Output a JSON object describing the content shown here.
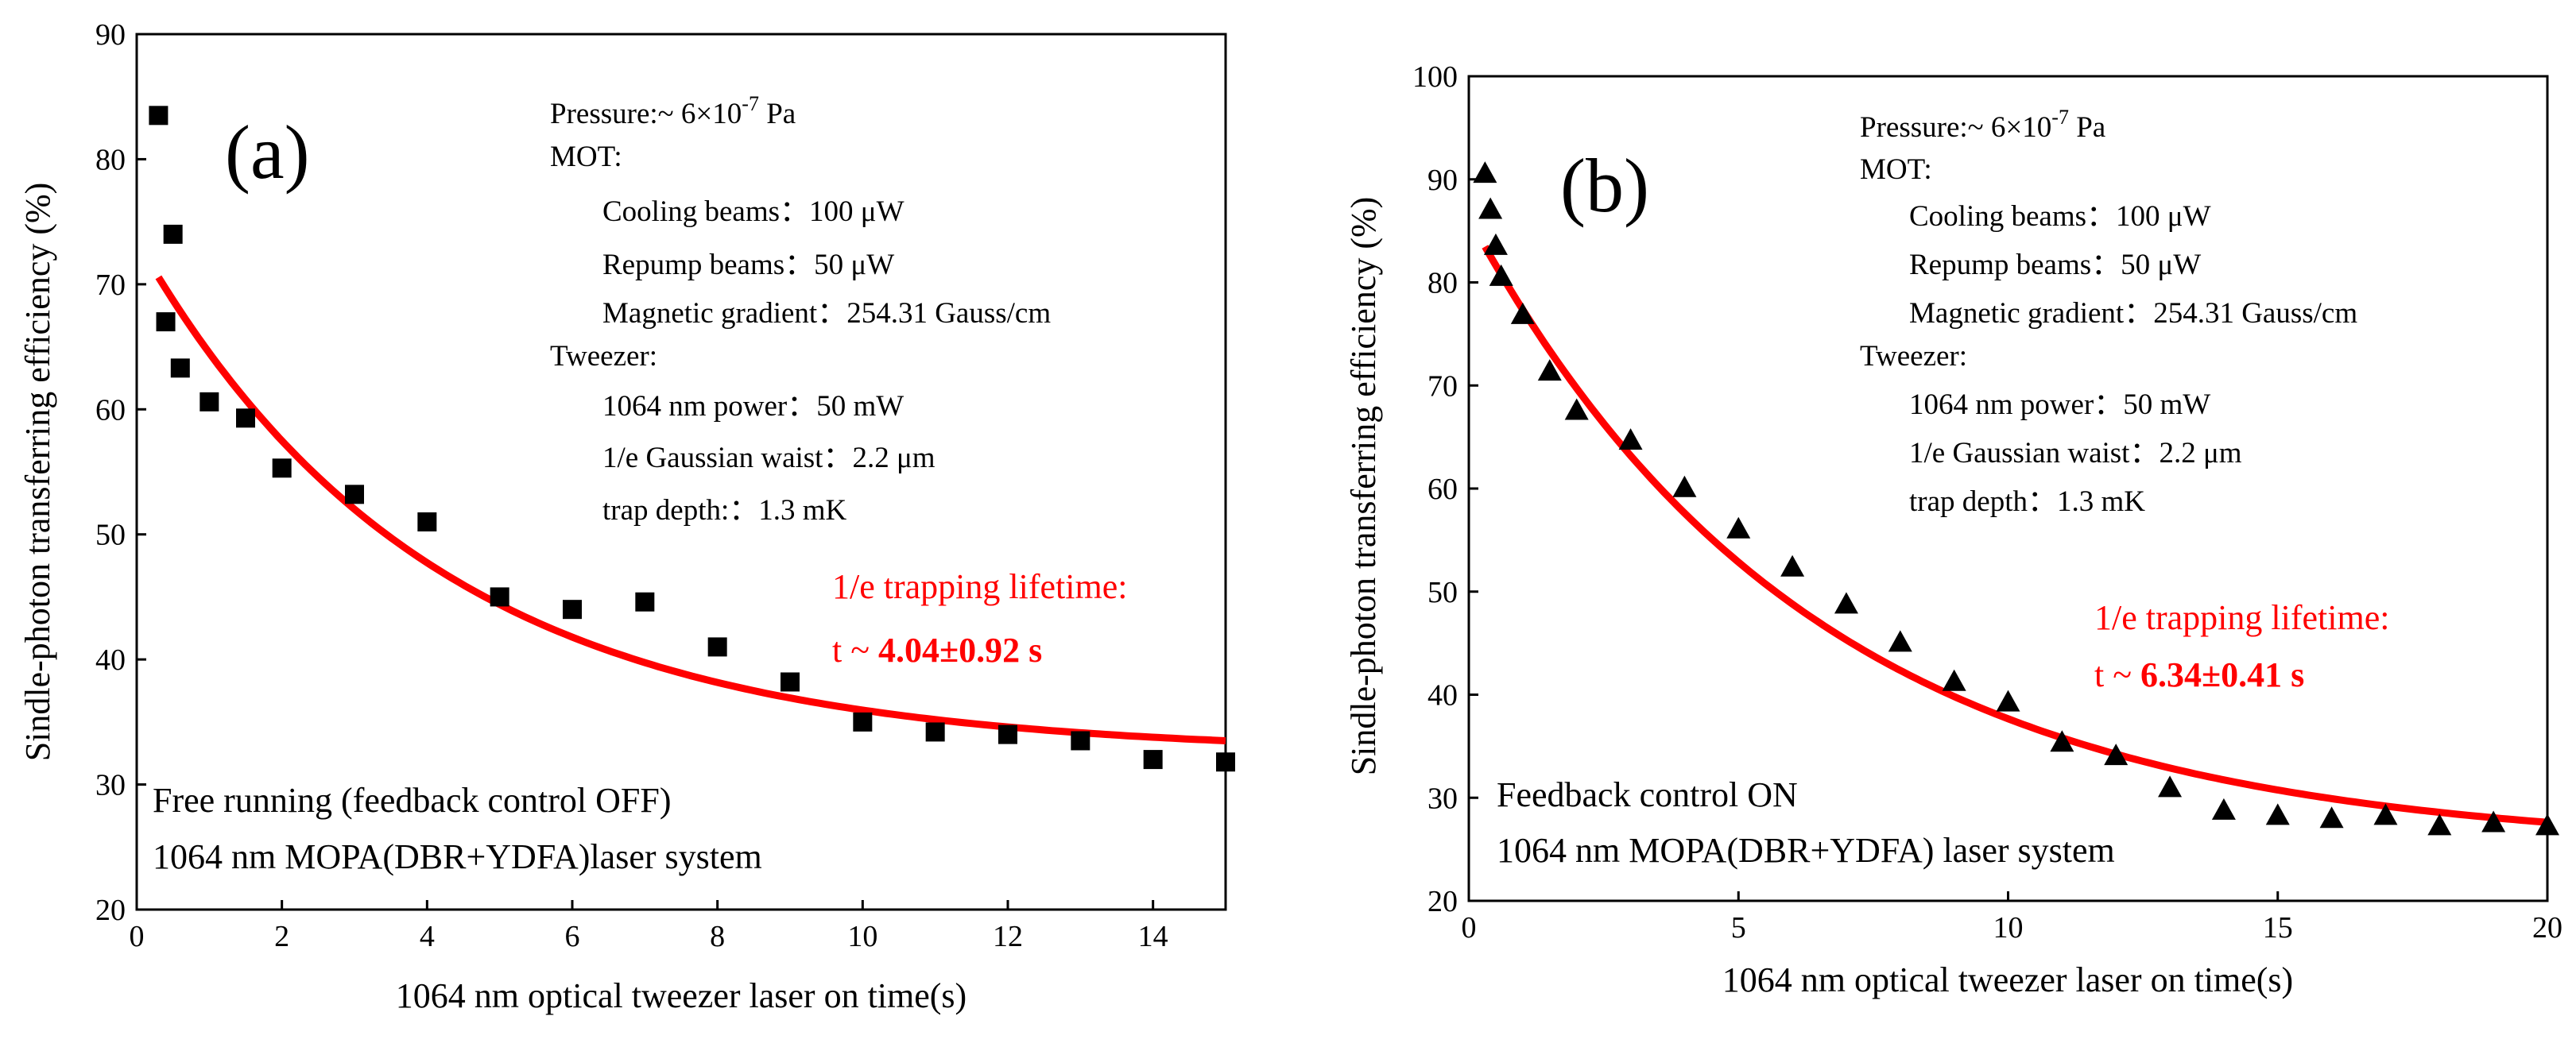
{
  "chart_data": [
    {
      "type": "scatter",
      "panel_label": "(a)",
      "xlabel": "1064 nm optical tweezer laser on time(s)",
      "ylabel": "Sindle-photon transferring efficiency (%)",
      "xlim": [
        0,
        15
      ],
      "ylim": [
        20,
        90
      ],
      "x_ticks": [
        0,
        2,
        4,
        6,
        8,
        10,
        12,
        14
      ],
      "y_ticks": [
        20,
        30,
        40,
        50,
        60,
        70,
        80,
        90
      ],
      "marker": "square",
      "marker_color": "#000000",
      "fit_color": "#ff0000",
      "points": {
        "x": [
          0.3,
          0.4,
          0.5,
          0.6,
          1,
          1.5,
          2,
          3,
          4,
          5,
          6,
          7,
          8,
          9,
          10,
          11,
          12,
          13,
          14,
          15
        ],
        "y": [
          83.5,
          67,
          74,
          63.3,
          60.6,
          59.3,
          55.3,
          53.2,
          51,
          45,
          44,
          44.6,
          41,
          38.2,
          35,
          34.2,
          34,
          33.5,
          32,
          31.8
        ]
      },
      "fit": {
        "model": "exp_decay",
        "y0": 32.5,
        "A": 41.0,
        "tau": 4.04,
        "x_start": 0.3,
        "x_end": 15
      },
      "info": {
        "pressure_prefix": "Pressure:~ 6×10",
        "pressure_exp": "-7",
        "pressure_unit": " Pa",
        "mot": "MOT:",
        "cooling": "Cooling beams：100 μW",
        "repump": "Repump beams：50 μW",
        "gradient": "Magnetic gradient：254.31 Gauss/cm",
        "tweezer": "Tweezer:",
        "power": "1064 nm power：50 mW",
        "waist": "1/e Gaussian waist：2.2 μm",
        "depth": "trap depth:：1.3 mK"
      },
      "lifetime_label": "1/e trapping lifetime:",
      "lifetime_prefix": "t ~ ",
      "lifetime_value": "4.04±0.92 s",
      "condition_line1": "Free running (feedback control OFF)",
      "condition_line2": "1064 nm MOPA(DBR+YDFA)laser system"
    },
    {
      "type": "scatter",
      "panel_label": "(b)",
      "xlabel": "1064 nm optical tweezer laser on time(s)",
      "ylabel": "Sindle-photon transferring efficiency (%)",
      "xlim": [
        0,
        20
      ],
      "ylim": [
        20,
        100
      ],
      "x_ticks": [
        0,
        5,
        10,
        15,
        20
      ],
      "y_ticks": [
        20,
        30,
        40,
        50,
        60,
        70,
        80,
        90,
        100
      ],
      "marker": "triangle",
      "marker_color": "#000000",
      "fit_color": "#ff0000",
      "points": {
        "x": [
          0.3,
          0.4,
          0.5,
          0.6,
          1,
          1.5,
          2,
          3,
          4,
          5,
          6,
          7,
          8,
          9,
          10,
          11,
          12,
          13,
          14,
          15,
          16,
          17,
          18,
          19,
          20
        ],
        "y": [
          90.5,
          87,
          83.5,
          80.5,
          76.8,
          71.3,
          67.5,
          64.6,
          60,
          56,
          52.3,
          48.7,
          45,
          41.2,
          39.2,
          35.3,
          34,
          30.9,
          28.7,
          28.2,
          27.9,
          28.2,
          27.2,
          27.5,
          27.2
        ]
      },
      "fit": {
        "model": "exp_decay",
        "y0": 25.0,
        "A": 61.3,
        "tau": 6.34,
        "x_start": 0.3,
        "x_end": 20
      },
      "info": {
        "pressure_prefix": "Pressure:~ 6×10",
        "pressure_exp": "-7",
        "pressure_unit": " Pa",
        "mot": "MOT:",
        "cooling": "Cooling beams：100 μW",
        "repump": "Repump beams：50 μW",
        "gradient": "Magnetic gradient：254.31 Gauss/cm",
        "tweezer": "Tweezer:",
        "power": "1064 nm power：50 mW",
        "waist": "1/e Gaussian waist：2.2 μm",
        "depth": "trap depth：1.3 mK"
      },
      "lifetime_label": "1/e trapping lifetime:",
      "lifetime_prefix": "t ~ ",
      "lifetime_value": "6.34±0.41 s",
      "condition_line1": "Feedback control ON",
      "condition_line2": "1064 nm MOPA(DBR+YDFA) laser system"
    }
  ]
}
